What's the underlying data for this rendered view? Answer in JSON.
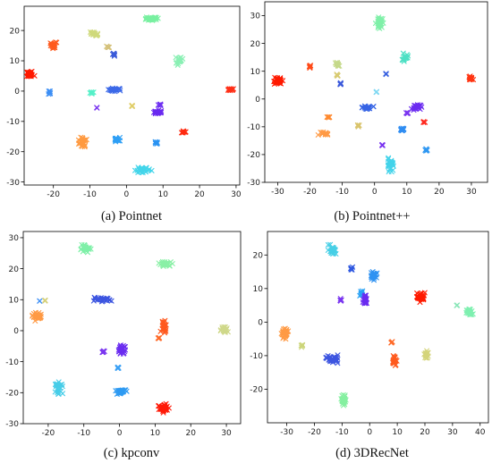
{
  "chart_data": [
    {
      "type": "scatter",
      "title": "",
      "caption": "(a) Pointnet",
      "xlabel": "",
      "ylabel": "",
      "xlim": [
        -28,
        31
      ],
      "ylim": [
        -31,
        28
      ],
      "xticks": [
        -20,
        -10,
        0,
        10,
        20,
        30
      ],
      "yticks": [
        -30,
        -20,
        -10,
        0,
        10,
        20
      ],
      "marker": "x",
      "series": [
        {
          "x": -26.5,
          "y": 5.5,
          "color": "#ff1a00",
          "spread": [
            1.1,
            0.8
          ],
          "count": 30
        },
        {
          "x": -20.0,
          "y": 15.0,
          "color": "#ff5a1e",
          "spread": [
            0.8,
            1.0
          ],
          "count": 22
        },
        {
          "x": -21.0,
          "y": -0.5,
          "color": "#3d8ff5",
          "spread": [
            0.4,
            0.5
          ],
          "count": 8
        },
        {
          "x": -9.0,
          "y": 19.0,
          "color": "#cfd97a",
          "spread": [
            0.9,
            0.6
          ],
          "count": 18
        },
        {
          "x": -5.0,
          "y": 14.5,
          "color": "#d5c27c",
          "spread": [
            0.4,
            0.4
          ],
          "count": 7
        },
        {
          "x": -3.5,
          "y": 12.0,
          "color": "#3b5bd9",
          "spread": [
            0.4,
            0.4
          ],
          "count": 7
        },
        {
          "x": -12.0,
          "y": -17.0,
          "color": "#ff9a40",
          "spread": [
            0.9,
            1.6
          ],
          "count": 28
        },
        {
          "x": -9.5,
          "y": -0.5,
          "color": "#55f0c8",
          "spread": [
            0.5,
            0.4
          ],
          "count": 7
        },
        {
          "x": -8.0,
          "y": -5.5,
          "color": "#7a35f0",
          "spread": [
            0.2,
            0.2
          ],
          "count": 2
        },
        {
          "x": -3.0,
          "y": 0.5,
          "color": "#3c69e8",
          "spread": [
            1.6,
            0.5
          ],
          "count": 24
        },
        {
          "x": 1.5,
          "y": -5.0,
          "color": "#e0ce6a",
          "spread": [
            0.3,
            0.3
          ],
          "count": 4
        },
        {
          "x": -2.5,
          "y": -16.0,
          "color": "#2e9ff5",
          "spread": [
            0.9,
            0.6
          ],
          "count": 14
        },
        {
          "x": 7.0,
          "y": 24.0,
          "color": "#78f0a0",
          "spread": [
            1.9,
            0.6
          ],
          "count": 30
        },
        {
          "x": 8.5,
          "y": -7.0,
          "color": "#6a2af0",
          "spread": [
            0.9,
            0.7
          ],
          "count": 22
        },
        {
          "x": 9.0,
          "y": -4.5,
          "color": "#6f30f2",
          "spread": [
            0.4,
            0.3
          ],
          "count": 6
        },
        {
          "x": 8.0,
          "y": -17.0,
          "color": "#2a93f2",
          "spread": [
            0.4,
            0.4
          ],
          "count": 6
        },
        {
          "x": 4.5,
          "y": -26.0,
          "color": "#43d5ea",
          "spread": [
            2.0,
            1.0
          ],
          "count": 26
        },
        {
          "x": 14.5,
          "y": 10.0,
          "color": "#8af0b4",
          "spread": [
            0.8,
            1.2
          ],
          "count": 18
        },
        {
          "x": 15.5,
          "y": -13.5,
          "color": "#ff2a10",
          "spread": [
            0.6,
            0.3
          ],
          "count": 9
        },
        {
          "x": 28.5,
          "y": 0.5,
          "color": "#ff3018",
          "spread": [
            0.7,
            0.4
          ],
          "count": 14
        }
      ]
    },
    {
      "type": "scatter",
      "title": "",
      "caption": "(b) Pointnet++",
      "xlabel": "",
      "ylabel": "",
      "xlim": [
        -34,
        35
      ],
      "ylim": [
        -30,
        35
      ],
      "xticks": [
        -30,
        -20,
        -10,
        0,
        10,
        20,
        30
      ],
      "yticks": [
        -30,
        -20,
        -10,
        0,
        10,
        20,
        30
      ],
      "marker": "x",
      "series": [
        {
          "x": -30.0,
          "y": 6.5,
          "color": "#ff1a00",
          "spread": [
            1.3,
            1.0
          ],
          "count": 34
        },
        {
          "x": -20.0,
          "y": 11.5,
          "color": "#ff4a18",
          "spread": [
            0.3,
            0.5
          ],
          "count": 8
        },
        {
          "x": -11.5,
          "y": 12.5,
          "color": "#c5d98a",
          "spread": [
            0.5,
            1.0
          ],
          "count": 14
        },
        {
          "x": -11.5,
          "y": 8.5,
          "color": "#d8cb72",
          "spread": [
            0.3,
            0.4
          ],
          "count": 6
        },
        {
          "x": -10.5,
          "y": 5.5,
          "color": "#3b59db",
          "spread": [
            0.3,
            0.4
          ],
          "count": 6
        },
        {
          "x": -14.0,
          "y": -6.5,
          "color": "#ff8a30",
          "spread": [
            0.6,
            0.3
          ],
          "count": 6
        },
        {
          "x": -16.0,
          "y": -12.5,
          "color": "#ff9a45",
          "spread": [
            1.2,
            0.6
          ],
          "count": 14
        },
        {
          "x": -5.0,
          "y": -9.5,
          "color": "#d9c46c",
          "spread": [
            0.4,
            0.4
          ],
          "count": 6
        },
        {
          "x": -2.5,
          "y": -3.0,
          "color": "#3664e5",
          "spread": [
            1.8,
            0.5
          ],
          "count": 24
        },
        {
          "x": 0.5,
          "y": 2.5,
          "color": "#7fd8f2",
          "spread": [
            0.3,
            0.3
          ],
          "count": 4
        },
        {
          "x": 3.5,
          "y": 9.0,
          "color": "#3a62e0",
          "spread": [
            0.3,
            0.3
          ],
          "count": 4
        },
        {
          "x": 1.5,
          "y": 27.0,
          "color": "#7ff0a8",
          "spread": [
            1.0,
            2.0
          ],
          "count": 30
        },
        {
          "x": 9.5,
          "y": 15.0,
          "color": "#4de0c4",
          "spread": [
            1.2,
            1.2
          ],
          "count": 22
        },
        {
          "x": 13.0,
          "y": -3.0,
          "color": "#6b2bf0",
          "spread": [
            1.3,
            0.8
          ],
          "count": 26
        },
        {
          "x": 10.0,
          "y": -5.0,
          "color": "#7a35f0",
          "spread": [
            0.3,
            0.3
          ],
          "count": 4
        },
        {
          "x": 15.5,
          "y": -8.5,
          "color": "#ff2a20",
          "spread": [
            0.3,
            0.3
          ],
          "count": 4
        },
        {
          "x": 8.5,
          "y": -11.0,
          "color": "#2f8df2",
          "spread": [
            0.6,
            0.6
          ],
          "count": 12
        },
        {
          "x": 2.5,
          "y": -16.5,
          "color": "#7a35f0",
          "spread": [
            0.3,
            0.3
          ],
          "count": 4
        },
        {
          "x": 5.0,
          "y": -23.5,
          "color": "#43d3ea",
          "spread": [
            0.9,
            2.2
          ],
          "count": 28
        },
        {
          "x": 16.0,
          "y": -18.5,
          "color": "#2e97f2",
          "spread": [
            0.3,
            0.5
          ],
          "count": 6
        },
        {
          "x": 30.0,
          "y": 7.5,
          "color": "#ff3512",
          "spread": [
            0.9,
            0.6
          ],
          "count": 18
        }
      ]
    },
    {
      "type": "scatter",
      "title": "",
      "caption": "(c) kpconv",
      "xlabel": "",
      "ylabel": "",
      "xlim": [
        -27,
        34
      ],
      "ylim": [
        -30,
        32
      ],
      "xticks": [
        -20,
        -10,
        0,
        10,
        20,
        30
      ],
      "yticks": [
        -30,
        -20,
        -10,
        0,
        10,
        20,
        30
      ],
      "marker": "x",
      "series": [
        {
          "x": -23.0,
          "y": 4.5,
          "color": "#ff9a45",
          "spread": [
            1.2,
            1.1
          ],
          "count": 30
        },
        {
          "x": -22.5,
          "y": 9.5,
          "color": "#3d8ff5",
          "spread": [
            0.2,
            0.2
          ],
          "count": 2
        },
        {
          "x": -21.0,
          "y": 9.5,
          "color": "#d5d07a",
          "spread": [
            0.3,
            0.3
          ],
          "count": 3
        },
        {
          "x": -9.5,
          "y": 26.5,
          "color": "#7ff0a8",
          "spread": [
            1.3,
            1.0
          ],
          "count": 30
        },
        {
          "x": -5.5,
          "y": 10.0,
          "color": "#3c55e0",
          "spread": [
            2.8,
            0.6
          ],
          "count": 30
        },
        {
          "x": 0.5,
          "y": -6.0,
          "color": "#6a2cf0",
          "spread": [
            1.0,
            1.2
          ],
          "count": 26
        },
        {
          "x": -4.5,
          "y": -7.0,
          "color": "#7a35f0",
          "spread": [
            0.4,
            0.4
          ],
          "count": 6
        },
        {
          "x": -0.5,
          "y": -12.0,
          "color": "#3aa0f5",
          "spread": [
            0.3,
            0.5
          ],
          "count": 6
        },
        {
          "x": 0.5,
          "y": -19.5,
          "color": "#2e9af2",
          "spread": [
            1.3,
            0.8
          ],
          "count": 26
        },
        {
          "x": -17.0,
          "y": -18.5,
          "color": "#47cde8",
          "spread": [
            1.0,
            1.6
          ],
          "count": 28
        },
        {
          "x": 13.0,
          "y": 21.5,
          "color": "#8af0a6",
          "spread": [
            1.6,
            0.7
          ],
          "count": 30
        },
        {
          "x": 12.5,
          "y": 1.5,
          "color": "#ff5a20",
          "spread": [
            0.8,
            1.8
          ],
          "count": 26
        },
        {
          "x": 11.0,
          "y": -2.5,
          "color": "#ff6a28",
          "spread": [
            0.3,
            0.4
          ],
          "count": 5
        },
        {
          "x": 12.5,
          "y": -25.0,
          "color": "#ff1a08",
          "spread": [
            1.5,
            1.5
          ],
          "count": 36
        },
        {
          "x": 29.5,
          "y": 0.5,
          "color": "#cfd88a",
          "spread": [
            0.9,
            0.9
          ],
          "count": 22
        }
      ]
    },
    {
      "type": "scatter",
      "title": "",
      "caption": "(d) 3DRecNet",
      "xlabel": "",
      "ylabel": "",
      "xlim": [
        -37,
        43
      ],
      "ylim": [
        -30,
        27
      ],
      "xticks": [
        -30,
        -20,
        -10,
        0,
        10,
        20,
        30,
        40
      ],
      "yticks": [
        -20,
        -10,
        0,
        10,
        20
      ],
      "marker": "x",
      "series": [
        {
          "x": -13.5,
          "y": 21.5,
          "color": "#47cfe6",
          "spread": [
            1.3,
            1.3
          ],
          "count": 30
        },
        {
          "x": -6.5,
          "y": 16.0,
          "color": "#2f58e0",
          "spread": [
            0.4,
            0.4
          ],
          "count": 6
        },
        {
          "x": 1.5,
          "y": 14.0,
          "color": "#2f92f2",
          "spread": [
            1.0,
            1.2
          ],
          "count": 26
        },
        {
          "x": -3.0,
          "y": 8.5,
          "color": "#2aa3f5",
          "spread": [
            0.6,
            0.8
          ],
          "count": 12
        },
        {
          "x": -1.5,
          "y": 6.5,
          "color": "#6b2bf0",
          "spread": [
            0.8,
            1.2
          ],
          "count": 26
        },
        {
          "x": -10.5,
          "y": 6.5,
          "color": "#7a35f0",
          "spread": [
            0.4,
            0.4
          ],
          "count": 6
        },
        {
          "x": 18.5,
          "y": 7.5,
          "color": "#ff1a00",
          "spread": [
            1.2,
            1.3
          ],
          "count": 34
        },
        {
          "x": 36.0,
          "y": 3.0,
          "color": "#7ff0b0",
          "spread": [
            1.2,
            1.0
          ],
          "count": 30
        },
        {
          "x": 31.5,
          "y": 5.0,
          "color": "#8ae6b8",
          "spread": [
            0.3,
            0.3
          ],
          "count": 3
        },
        {
          "x": -30.5,
          "y": -3.5,
          "color": "#ff9a45",
          "spread": [
            1.2,
            1.3
          ],
          "count": 30
        },
        {
          "x": -24.5,
          "y": -7.0,
          "color": "#ccd57a",
          "spread": [
            0.4,
            0.4
          ],
          "count": 6
        },
        {
          "x": -13.5,
          "y": -11.0,
          "color": "#3d55e0",
          "spread": [
            1.9,
            1.0
          ],
          "count": 32
        },
        {
          "x": 9.0,
          "y": -11.5,
          "color": "#ff5a1e",
          "spread": [
            0.7,
            1.4
          ],
          "count": 24
        },
        {
          "x": 8.0,
          "y": -6.0,
          "color": "#ff6a28",
          "spread": [
            0.3,
            0.3
          ],
          "count": 4
        },
        {
          "x": 20.5,
          "y": -9.5,
          "color": "#d4d47a",
          "spread": [
            0.8,
            1.0
          ],
          "count": 18
        },
        {
          "x": -9.5,
          "y": -23.5,
          "color": "#85f0a0",
          "spread": [
            0.8,
            1.5
          ],
          "count": 26
        }
      ]
    }
  ]
}
